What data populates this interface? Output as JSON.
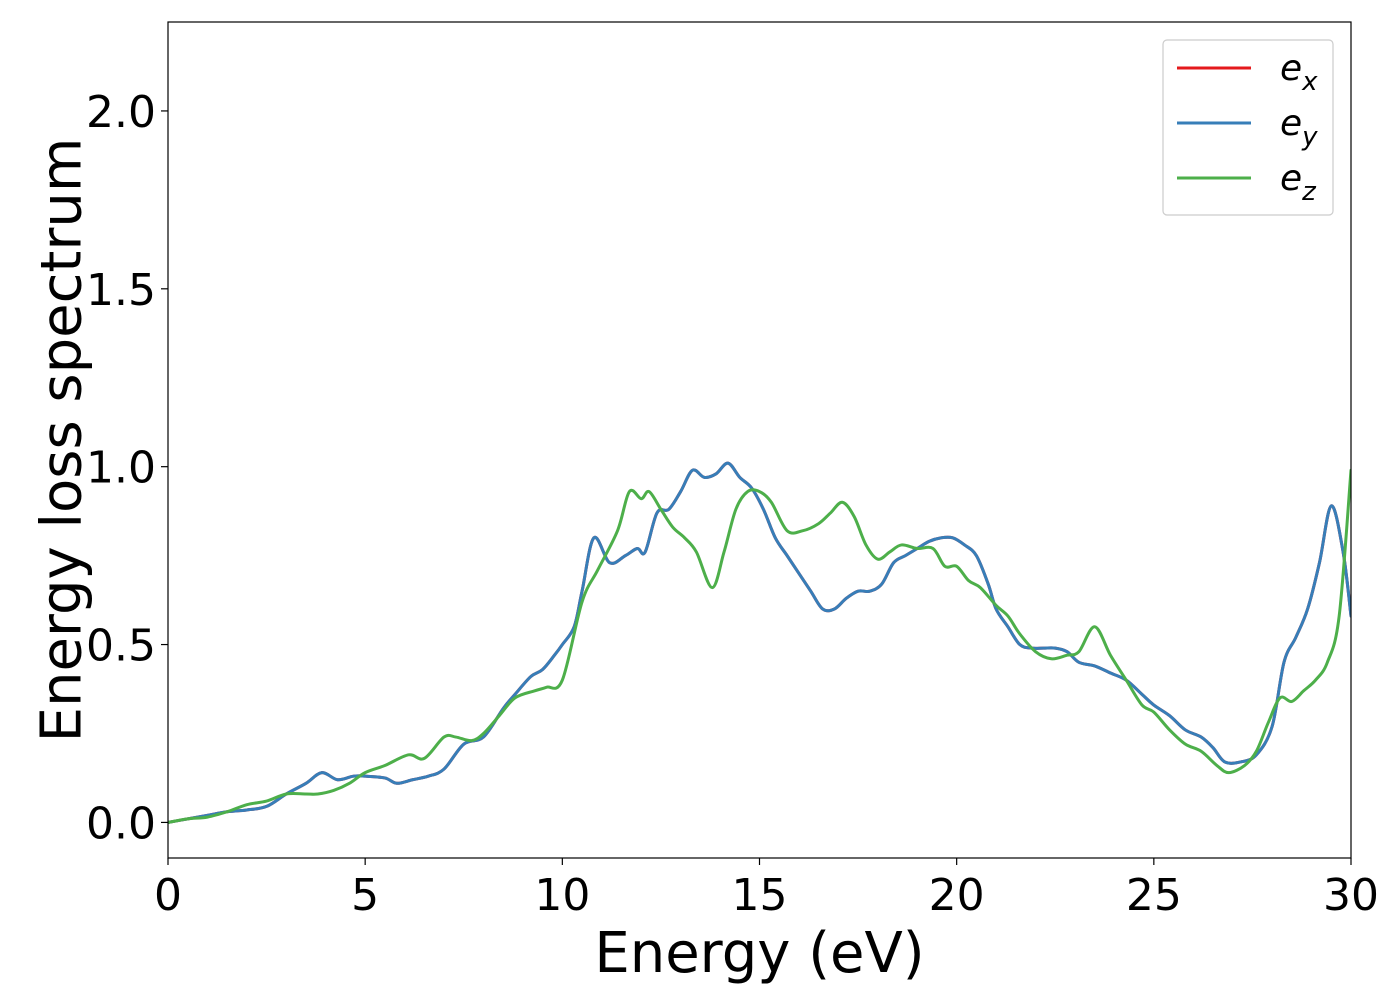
{
  "chart_data": {
    "type": "line",
    "title": "",
    "xlabel": "Energy (eV)",
    "ylabel": "Energy loss spectrum",
    "xlim": [
      0,
      30
    ],
    "ylim": [
      -0.1,
      2.25
    ],
    "xticks": [
      0,
      5,
      10,
      15,
      20,
      25,
      30
    ],
    "xtick_labels": [
      "0",
      "5",
      "10",
      "15",
      "20",
      "25",
      "30"
    ],
    "yticks": [
      0.0,
      0.5,
      1.0,
      1.5,
      2.0
    ],
    "ytick_labels": [
      "0.0",
      "0.5",
      "1.0",
      "1.5",
      "2.0"
    ],
    "grid": false,
    "legend": "top-right",
    "series": [
      {
        "name": "e_x",
        "legend_base": "e",
        "legend_sub": "x",
        "color": "#e41a1c",
        "x": [
          0,
          0.5,
          1,
          1.5,
          2,
          2.5,
          3,
          3.5,
          3.9,
          4.3,
          4.7,
          5,
          5.5,
          5.8,
          6.2,
          6.6,
          7,
          7.5,
          8,
          8.5,
          8.8,
          9.2,
          9.5,
          9.8,
          10,
          10.3,
          10.5,
          10.8,
          11.2,
          11.6,
          11.9,
          12.1,
          12.4,
          12.7,
          13,
          13.3,
          13.6,
          13.9,
          14.2,
          14.5,
          14.8,
          15.1,
          15.4,
          15.7,
          16,
          16.3,
          16.6,
          16.9,
          17.2,
          17.5,
          17.8,
          18.1,
          18.4,
          18.7,
          19,
          19.3,
          19.6,
          19.9,
          20.2,
          20.5,
          20.8,
          21,
          21.3,
          21.6,
          21.9,
          22.2,
          22.5,
          22.8,
          23.1,
          23.5,
          23.9,
          24.3,
          24.7,
          25,
          25.4,
          25.8,
          26.2,
          26.5,
          26.8,
          27.2,
          27.6,
          28,
          28.3,
          28.6,
          28.9,
          29.2,
          29.5,
          29.8,
          30
        ],
        "values": [
          0.0,
          0.01,
          0.02,
          0.03,
          0.035,
          0.045,
          0.08,
          0.11,
          0.14,
          0.12,
          0.13,
          0.13,
          0.125,
          0.11,
          0.12,
          0.13,
          0.15,
          0.22,
          0.24,
          0.32,
          0.36,
          0.41,
          0.43,
          0.47,
          0.5,
          0.55,
          0.65,
          0.8,
          0.73,
          0.75,
          0.77,
          0.76,
          0.87,
          0.88,
          0.93,
          0.99,
          0.97,
          0.98,
          1.01,
          0.97,
          0.94,
          0.88,
          0.8,
          0.75,
          0.7,
          0.65,
          0.6,
          0.6,
          0.63,
          0.65,
          0.65,
          0.67,
          0.73,
          0.75,
          0.77,
          0.79,
          0.8,
          0.8,
          0.78,
          0.75,
          0.67,
          0.6,
          0.55,
          0.5,
          0.49,
          0.49,
          0.49,
          0.48,
          0.45,
          0.44,
          0.42,
          0.4,
          0.36,
          0.33,
          0.3,
          0.26,
          0.24,
          0.21,
          0.17,
          0.17,
          0.19,
          0.27,
          0.45,
          0.52,
          0.6,
          0.73,
          0.89,
          0.76,
          0.58
        ]
      },
      {
        "name": "e_y",
        "legend_base": "e",
        "legend_sub": "y",
        "color": "#377eb8",
        "x": [
          0,
          0.5,
          1,
          1.5,
          2,
          2.5,
          3,
          3.5,
          3.9,
          4.3,
          4.7,
          5,
          5.5,
          5.8,
          6.2,
          6.6,
          7,
          7.5,
          8,
          8.5,
          8.8,
          9.2,
          9.5,
          9.8,
          10,
          10.3,
          10.5,
          10.8,
          11.2,
          11.6,
          11.9,
          12.1,
          12.4,
          12.7,
          13,
          13.3,
          13.6,
          13.9,
          14.2,
          14.5,
          14.8,
          15.1,
          15.4,
          15.7,
          16,
          16.3,
          16.6,
          16.9,
          17.2,
          17.5,
          17.8,
          18.1,
          18.4,
          18.7,
          19,
          19.3,
          19.6,
          19.9,
          20.2,
          20.5,
          20.8,
          21,
          21.3,
          21.6,
          21.9,
          22.2,
          22.5,
          22.8,
          23.1,
          23.5,
          23.9,
          24.3,
          24.7,
          25,
          25.4,
          25.8,
          26.2,
          26.5,
          26.8,
          27.2,
          27.6,
          28,
          28.3,
          28.6,
          28.9,
          29.2,
          29.5,
          29.8,
          30
        ],
        "values": [
          0.0,
          0.01,
          0.02,
          0.03,
          0.035,
          0.045,
          0.08,
          0.11,
          0.14,
          0.12,
          0.13,
          0.13,
          0.125,
          0.11,
          0.12,
          0.13,
          0.15,
          0.22,
          0.24,
          0.32,
          0.36,
          0.41,
          0.43,
          0.47,
          0.5,
          0.55,
          0.65,
          0.8,
          0.73,
          0.75,
          0.77,
          0.76,
          0.87,
          0.88,
          0.93,
          0.99,
          0.97,
          0.98,
          1.01,
          0.97,
          0.94,
          0.88,
          0.8,
          0.75,
          0.7,
          0.65,
          0.6,
          0.6,
          0.63,
          0.65,
          0.65,
          0.67,
          0.73,
          0.75,
          0.77,
          0.79,
          0.8,
          0.8,
          0.78,
          0.75,
          0.67,
          0.6,
          0.55,
          0.5,
          0.49,
          0.49,
          0.49,
          0.48,
          0.45,
          0.44,
          0.42,
          0.4,
          0.36,
          0.33,
          0.3,
          0.26,
          0.24,
          0.21,
          0.17,
          0.17,
          0.19,
          0.27,
          0.45,
          0.52,
          0.6,
          0.73,
          0.89,
          0.76,
          0.58
        ]
      },
      {
        "name": "e_z",
        "legend_base": "e",
        "legend_sub": "z",
        "color": "#4daf4a",
        "x": [
          0,
          0.5,
          1,
          1.5,
          2,
          2.5,
          3,
          3.5,
          3.8,
          4.2,
          4.6,
          5,
          5.5,
          6.1,
          6.5,
          7,
          7.3,
          7.7,
          8,
          8.4,
          8.8,
          9.3,
          9.6,
          10,
          10.5,
          10.9,
          11.4,
          11.7,
          12,
          12.2,
          12.5,
          12.8,
          13.1,
          13.4,
          13.8,
          14.1,
          14.4,
          14.7,
          15,
          15.3,
          15.7,
          16.1,
          16.5,
          16.8,
          17.1,
          17.4,
          17.7,
          18,
          18.3,
          18.6,
          19,
          19.4,
          19.7,
          20,
          20.3,
          20.6,
          21,
          21.3,
          21.6,
          22,
          22.4,
          22.8,
          23.1,
          23.5,
          23.9,
          24.3,
          24.7,
          25,
          25.4,
          25.8,
          26.2,
          26.6,
          26.9,
          27.3,
          27.6,
          27.9,
          28.2,
          28.5,
          28.8,
          29.1,
          29.4,
          29.7,
          30
        ],
        "values": [
          0.0,
          0.01,
          0.015,
          0.03,
          0.05,
          0.06,
          0.08,
          0.08,
          0.08,
          0.09,
          0.11,
          0.14,
          0.16,
          0.19,
          0.18,
          0.24,
          0.24,
          0.23,
          0.25,
          0.3,
          0.35,
          0.37,
          0.38,
          0.4,
          0.62,
          0.71,
          0.82,
          0.93,
          0.91,
          0.93,
          0.88,
          0.83,
          0.8,
          0.76,
          0.66,
          0.76,
          0.88,
          0.93,
          0.93,
          0.9,
          0.82,
          0.82,
          0.84,
          0.87,
          0.9,
          0.86,
          0.78,
          0.74,
          0.76,
          0.78,
          0.77,
          0.77,
          0.72,
          0.72,
          0.68,
          0.66,
          0.61,
          0.58,
          0.53,
          0.48,
          0.46,
          0.47,
          0.48,
          0.55,
          0.47,
          0.4,
          0.33,
          0.31,
          0.26,
          0.22,
          0.2,
          0.16,
          0.14,
          0.16,
          0.2,
          0.28,
          0.35,
          0.34,
          0.37,
          0.4,
          0.45,
          0.58,
          0.99
        ]
      }
    ]
  }
}
